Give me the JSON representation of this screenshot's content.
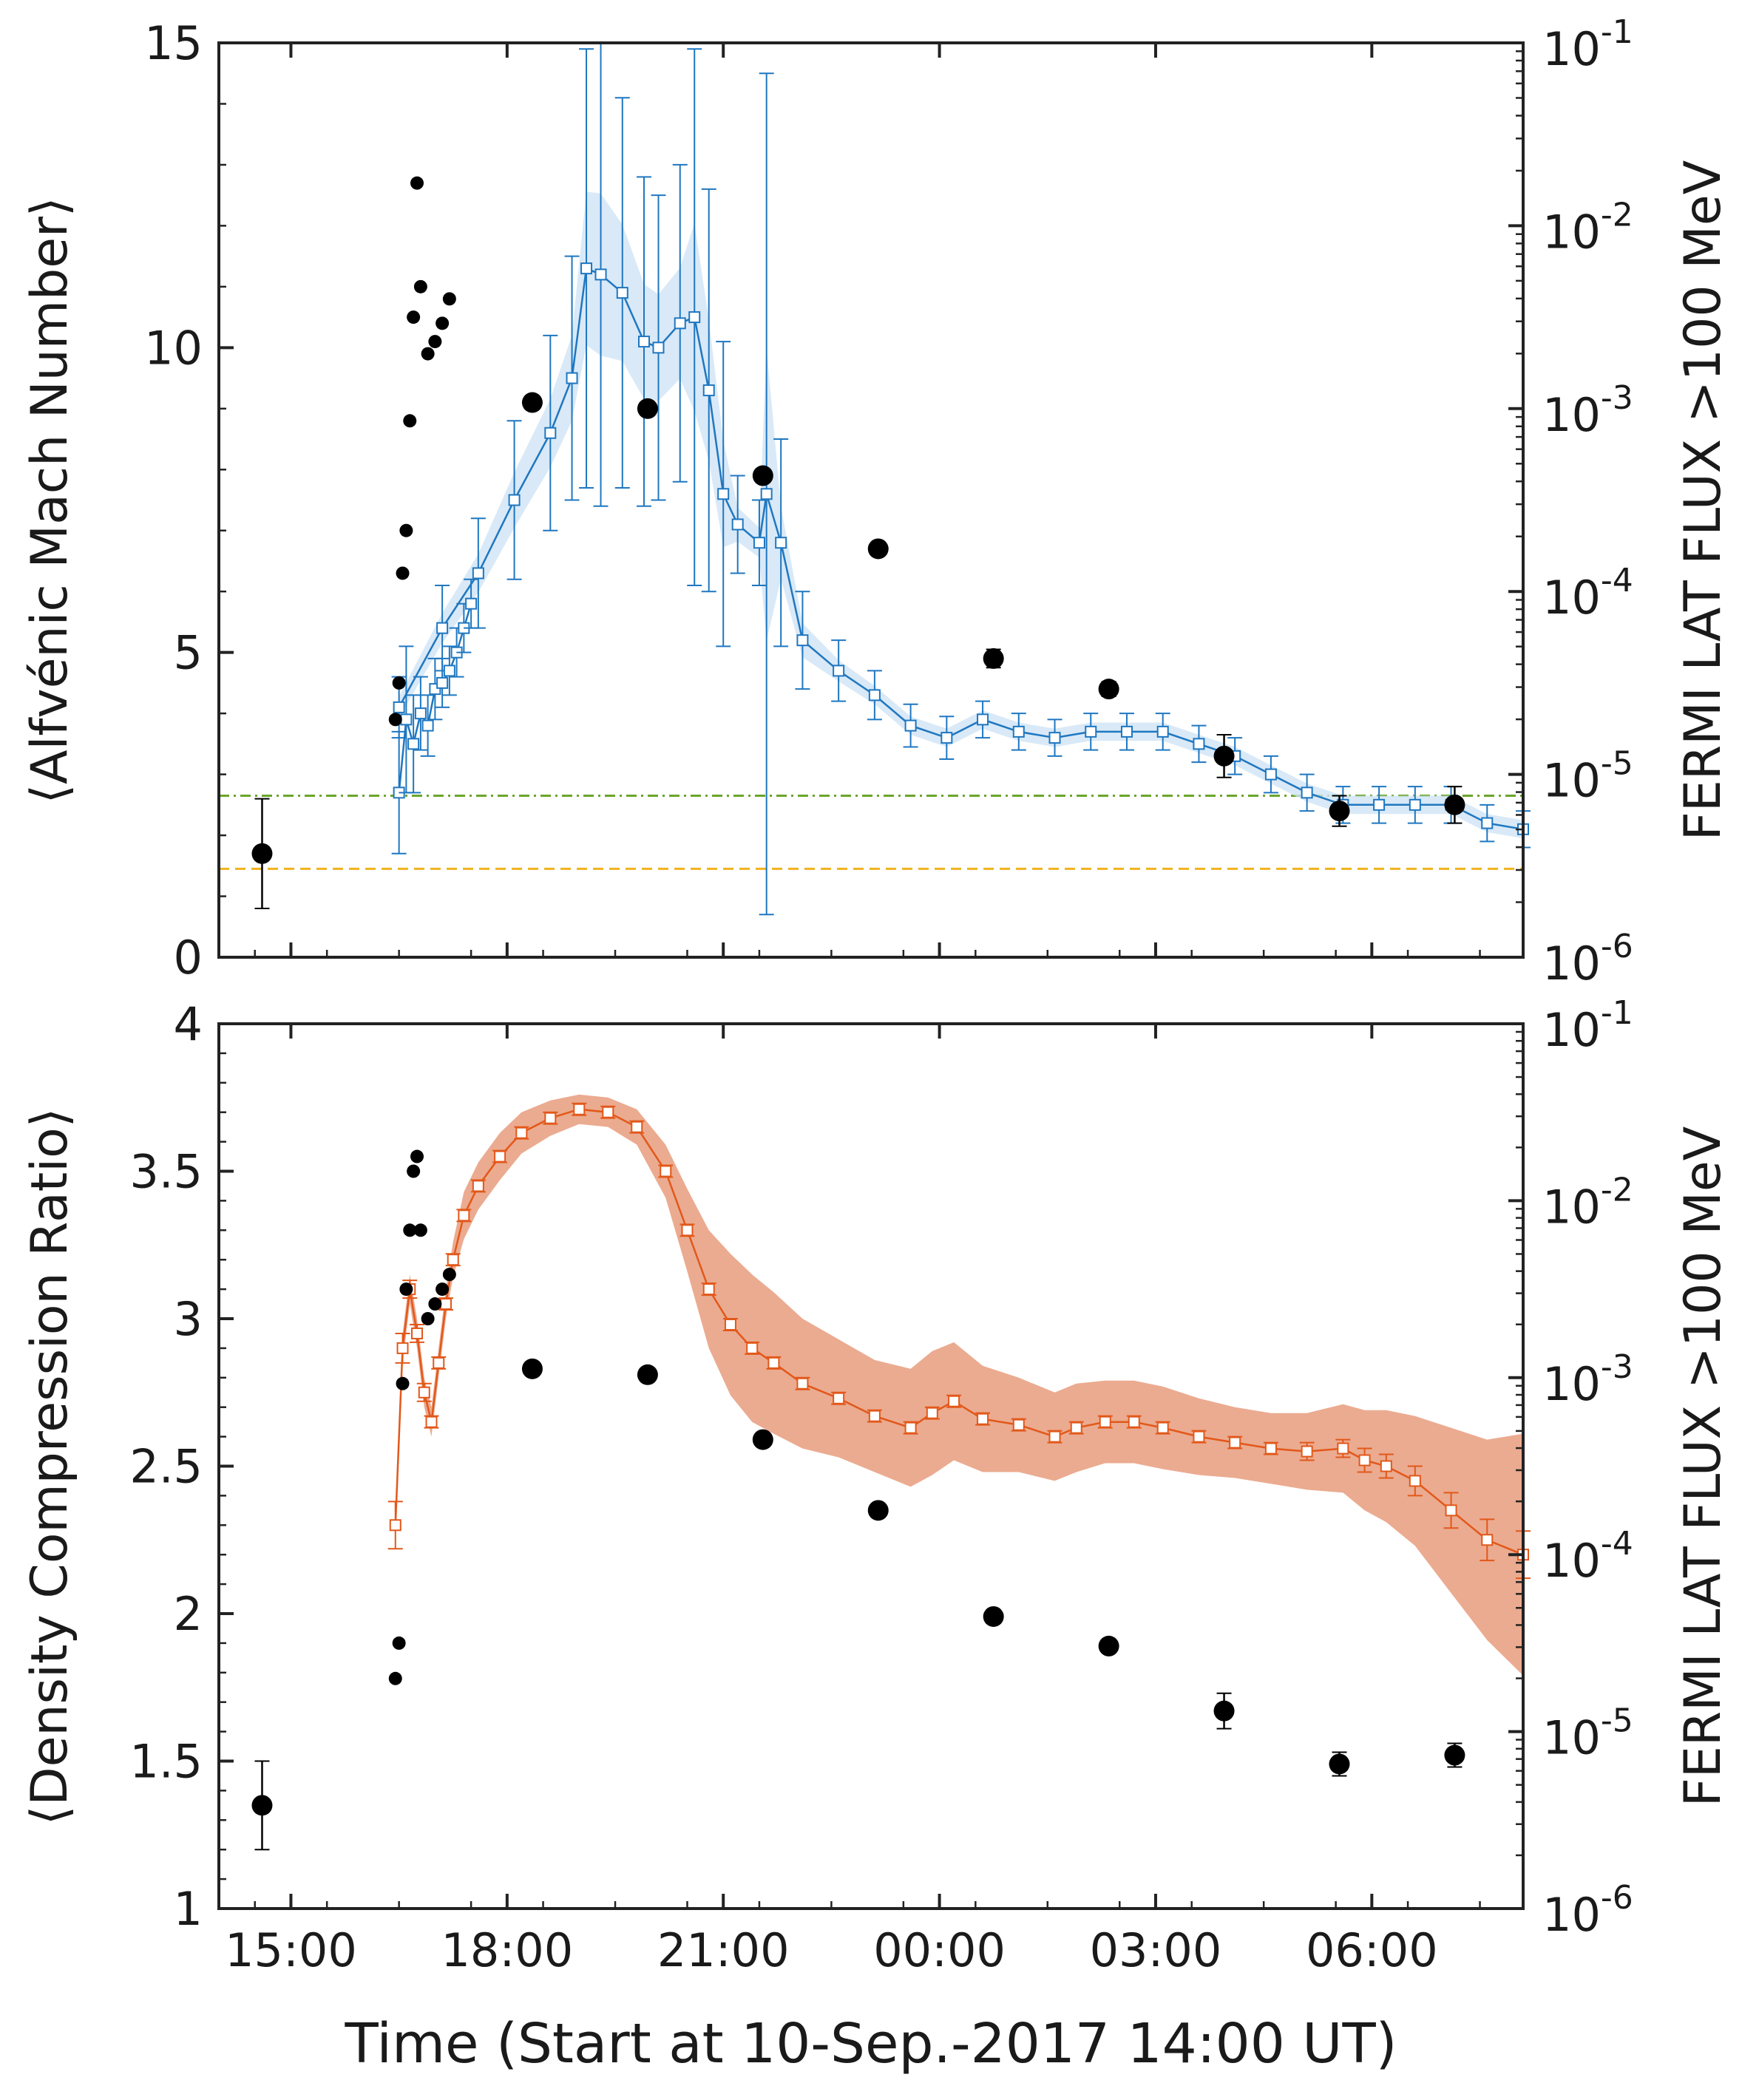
{
  "chart_data": [
    {
      "type": "line",
      "panel": "top",
      "ylabel": "⟨Alfvénic Mach Number⟩",
      "ylabel_right": "FERMI LAT FLUX >100 MeV",
      "xlim": [
        -0.6,
        17.5
      ],
      "ylim": [
        0,
        15
      ],
      "yticks": [
        0,
        5,
        10,
        15
      ],
      "yticklabels": [
        "0",
        "5",
        "10",
        "15"
      ],
      "right_ylim_log10": [
        -6,
        -1
      ],
      "right_ticks": [
        {
          "base": "10",
          "exp": "-6",
          "pos": -6
        },
        {
          "base": "10",
          "exp": "-5",
          "pos": -5
        },
        {
          "base": "10",
          "exp": "-4",
          "pos": -4
        },
        {
          "base": "10",
          "exp": "-3",
          "pos": -3
        },
        {
          "base": "10",
          "exp": "-2",
          "pos": -2
        },
        {
          "base": "10",
          "exp": "-1",
          "pos": -1
        }
      ],
      "reference_lines": [
        {
          "y": 2.65,
          "color": "#6aa62b",
          "style": "dashdot"
        },
        {
          "y": 1.45,
          "color": "#f0b21e",
          "style": "dashed"
        }
      ],
      "series": [
        {
          "name": "Alfvénic Mach Number (sparse)",
          "color": "#1f77c0",
          "band_color": "#cfe3f5",
          "x": [
            1.9,
            2.5,
            3.0,
            3.5,
            4.0,
            4.3,
            4.5,
            4.7,
            5.0,
            5.3,
            5.5,
            5.8,
            6.0,
            6.2,
            6.4,
            6.6,
            6.9,
            7.0,
            7.2,
            7.5,
            8.0,
            8.5,
            9.0,
            9.5,
            10.0,
            10.5,
            11.0,
            11.5,
            12.0,
            12.5,
            13.0,
            13.5,
            14.0,
            14.5,
            15.0,
            15.5,
            16.0,
            16.5,
            17.0,
            17.5
          ],
          "y": [
            4.1,
            5.4,
            6.3,
            7.5,
            8.6,
            9.5,
            11.3,
            11.2,
            10.9,
            10.1,
            10.0,
            10.4,
            10.5,
            9.3,
            7.6,
            7.1,
            6.8,
            7.6,
            6.8,
            5.2,
            4.7,
            4.3,
            3.8,
            3.6,
            3.9,
            3.7,
            3.6,
            3.7,
            3.7,
            3.7,
            3.5,
            3.3,
            3.0,
            2.7,
            2.5,
            2.5,
            2.5,
            2.5,
            2.2,
            2.1
          ],
          "err": [
            0.5,
            0.7,
            0.9,
            1.3,
            1.6,
            2.0,
            3.6,
            3.8,
            3.2,
            2.7,
            2.5,
            2.6,
            4.4,
            3.3,
            2.5,
            0.8,
            0.7,
            6.9,
            1.7,
            0.8,
            0.5,
            0.4,
            0.35,
            0.35,
            0.3,
            0.3,
            0.3,
            0.3,
            0.3,
            0.3,
            0.3,
            0.3,
            0.3,
            0.3,
            0.3,
            0.3,
            0.3,
            0.3,
            0.3,
            0.3
          ]
        },
        {
          "name": "Alfvénic Mach Number (dense)",
          "color": "#1f77c0",
          "x": [
            1.9,
            2.0,
            2.1,
            2.2,
            2.3,
            2.4,
            2.5,
            2.6,
            2.7,
            2.8,
            2.9
          ],
          "y": [
            2.7,
            3.9,
            3.5,
            4.0,
            3.8,
            4.4,
            4.5,
            4.7,
            5.0,
            5.4,
            5.8
          ],
          "err": [
            1.0,
            1.2,
            0.8,
            0.6,
            0.5,
            0.5,
            0.4,
            0.4,
            0.4,
            0.4,
            0.4
          ]
        },
        {
          "name": "FERMI LAT flux (right axis)",
          "color": "#000000",
          "axis": "right",
          "x": [
            0.0,
            1.85,
            1.9,
            1.95,
            2.0,
            2.05,
            2.1,
            2.15,
            2.2,
            2.3,
            2.4,
            2.5,
            2.6,
            3.75,
            5.35,
            6.95,
            8.55,
            10.15,
            11.75,
            13.35,
            14.95,
            16.55
          ],
          "y": [
            1.7,
            3.9,
            4.5,
            6.3,
            7.0,
            8.8,
            10.5,
            12.7,
            11.0,
            9.9,
            10.1,
            10.4,
            10.8,
            9.1,
            9.0,
            7.9,
            6.7,
            4.9,
            4.4,
            3.3,
            2.4,
            2.5
          ],
          "err": [
            0.9,
            0,
            0,
            0,
            0,
            0,
            0,
            0,
            0,
            0,
            0,
            0,
            0,
            0,
            0,
            0,
            0,
            0.15,
            0.12,
            0.35,
            0.25,
            0.3
          ]
        }
      ]
    },
    {
      "type": "line",
      "panel": "bottom",
      "ylabel": "⟨Density Compression Ratio⟩",
      "ylabel_right": "FERMI LAT FLUX >100 MeV",
      "xlabel": "Time (Start at 10-Sep.-2017 14:00 UT)",
      "xlim": [
        -0.6,
        17.5
      ],
      "ylim": [
        1,
        4
      ],
      "xticks": [
        0.4,
        3.4,
        6.4,
        9.4,
        12.4,
        15.4
      ],
      "xticklabels": [
        "15:00",
        "18:00",
        "21:00",
        "00:00",
        "03:00",
        "06:00"
      ],
      "yticks": [
        1,
        1.5,
        2,
        2.5,
        3,
        3.5,
        4
      ],
      "yticklabels": [
        "1",
        "1.5",
        "2",
        "2.5",
        "3",
        "3.5",
        "4"
      ],
      "right_ylim_log10": [
        -6,
        -1
      ],
      "right_ticks": [
        {
          "base": "10",
          "exp": "-6",
          "pos": -6
        },
        {
          "base": "10",
          "exp": "-5",
          "pos": -5
        },
        {
          "base": "10",
          "exp": "-4",
          "pos": -4
        },
        {
          "base": "10",
          "exp": "-3",
          "pos": -3
        },
        {
          "base": "10",
          "exp": "-2",
          "pos": -2
        },
        {
          "base": "10",
          "exp": "-1",
          "pos": -1
        }
      ],
      "series": [
        {
          "name": "Density Compression Ratio",
          "color": "#e2581a",
          "band_color": "#eaa78a",
          "x": [
            1.85,
            1.95,
            2.05,
            2.15,
            2.25,
            2.35,
            2.45,
            2.55,
            2.65,
            2.8,
            3.0,
            3.3,
            3.6,
            4.0,
            4.4,
            4.8,
            5.2,
            5.6,
            5.9,
            6.2,
            6.5,
            6.8,
            7.1,
            7.5,
            8.0,
            8.5,
            9.0,
            9.3,
            9.6,
            10.0,
            10.5,
            11.0,
            11.3,
            11.7,
            12.1,
            12.5,
            13.0,
            13.5,
            14.0,
            14.5,
            15.0,
            15.3,
            15.6,
            16.0,
            16.5,
            17.0,
            17.5
          ],
          "y": [
            2.3,
            2.9,
            3.1,
            2.95,
            2.75,
            2.65,
            2.85,
            3.05,
            3.2,
            3.35,
            3.45,
            3.55,
            3.63,
            3.68,
            3.71,
            3.7,
            3.65,
            3.5,
            3.3,
            3.1,
            2.98,
            2.9,
            2.85,
            2.78,
            2.73,
            2.67,
            2.63,
            2.68,
            2.72,
            2.66,
            2.64,
            2.6,
            2.63,
            2.65,
            2.65,
            2.63,
            2.6,
            2.58,
            2.56,
            2.55,
            2.56,
            2.52,
            2.5,
            2.45,
            2.35,
            2.25,
            2.2
          ],
          "err": [
            0.08,
            0.05,
            0.03,
            0.03,
            0.03,
            0.02,
            0.02,
            0.02,
            0.02,
            0.02,
            0.02,
            0.02,
            0.02,
            0.02,
            0.02,
            0.02,
            0.02,
            0.02,
            0.02,
            0.02,
            0.02,
            0.02,
            0.02,
            0.02,
            0.02,
            0.02,
            0.02,
            0.02,
            0.02,
            0.02,
            0.02,
            0.02,
            0.02,
            0.02,
            0.02,
            0.02,
            0.02,
            0.02,
            0.02,
            0.03,
            0.03,
            0.04,
            0.04,
            0.05,
            0.06,
            0.07,
            0.08
          ],
          "band_half": [
            0.05,
            0.05,
            0.05,
            0.05,
            0.05,
            0.05,
            0.05,
            0.05,
            0.06,
            0.08,
            0.08,
            0.08,
            0.07,
            0.06,
            0.05,
            0.05,
            0.06,
            0.09,
            0.14,
            0.2,
            0.24,
            0.25,
            0.24,
            0.22,
            0.2,
            0.19,
            0.2,
            0.21,
            0.2,
            0.18,
            0.16,
            0.15,
            0.15,
            0.14,
            0.14,
            0.14,
            0.13,
            0.12,
            0.12,
            0.13,
            0.15,
            0.17,
            0.19,
            0.22,
            0.28,
            0.34,
            0.41
          ]
        },
        {
          "name": "FERMI LAT flux (right axis)",
          "color": "#000000",
          "axis": "right",
          "x": [
            0.0,
            1.85,
            1.9,
            1.95,
            2.0,
            2.05,
            2.1,
            2.15,
            2.2,
            2.3,
            2.4,
            2.5,
            2.6,
            3.75,
            5.35,
            6.95,
            8.55,
            10.15,
            11.75,
            13.35,
            14.95,
            16.55
          ],
          "y": [
            1.35,
            1.78,
            1.9,
            2.78,
            3.1,
            3.3,
            3.5,
            3.55,
            3.3,
            3.0,
            3.05,
            3.1,
            3.15,
            2.83,
            2.81,
            2.59,
            2.35,
            1.99,
            1.89,
            1.67,
            1.49,
            1.52
          ],
          "err": [
            0.15,
            0,
            0,
            0,
            0,
            0,
            0,
            0,
            0,
            0,
            0,
            0,
            0,
            0,
            0,
            0,
            0,
            0.02,
            0.02,
            0.06,
            0.04,
            0.04
          ]
        }
      ]
    }
  ]
}
